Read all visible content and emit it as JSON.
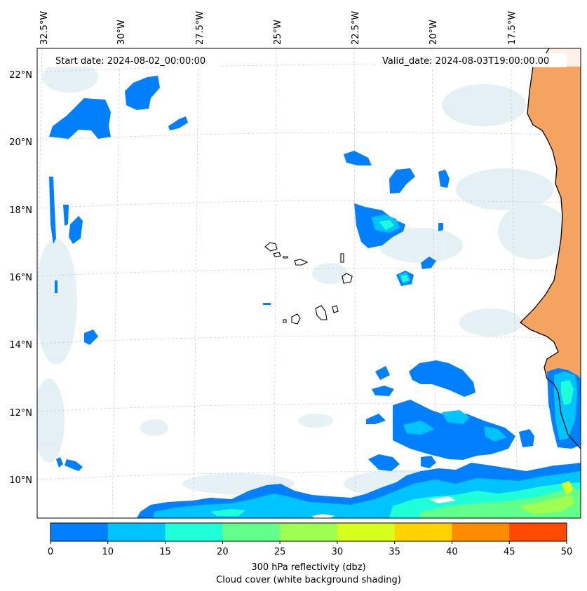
{
  "map": {
    "start_date": "Start date: 2024-08-02_00:00:00",
    "valid_date": "Valid_date: 2024-08-03T19:00:00.00",
    "lon_labels": [
      "32.5°W",
      "30°W",
      "27.5°W",
      "25°W",
      "22.5°W",
      "20°W",
      "17.5°W"
    ],
    "lat_labels": [
      "22°N",
      "20°N",
      "18°N",
      "16°N",
      "14°N",
      "12°N",
      "10°N"
    ]
  },
  "colorbar": {
    "ticks": [
      "0",
      "10",
      "15",
      "20",
      "25",
      "30",
      "35",
      "40",
      "45",
      "50"
    ],
    "colors": [
      "#0080ff",
      "#00c4ff",
      "#1effd8",
      "#62ff8a",
      "#9eff52",
      "#d6ff1e",
      "#ffd200",
      "#ff8c00",
      "#ff4a00"
    ],
    "label_line1": "300 hPa reflectivity (dbz)",
    "label_line2": "Cloud cover (white background shading)"
  },
  "colors": {
    "land_dust": "#f4a460",
    "cloud_shade": "#d8ecf0",
    "coast": "#000000"
  }
}
